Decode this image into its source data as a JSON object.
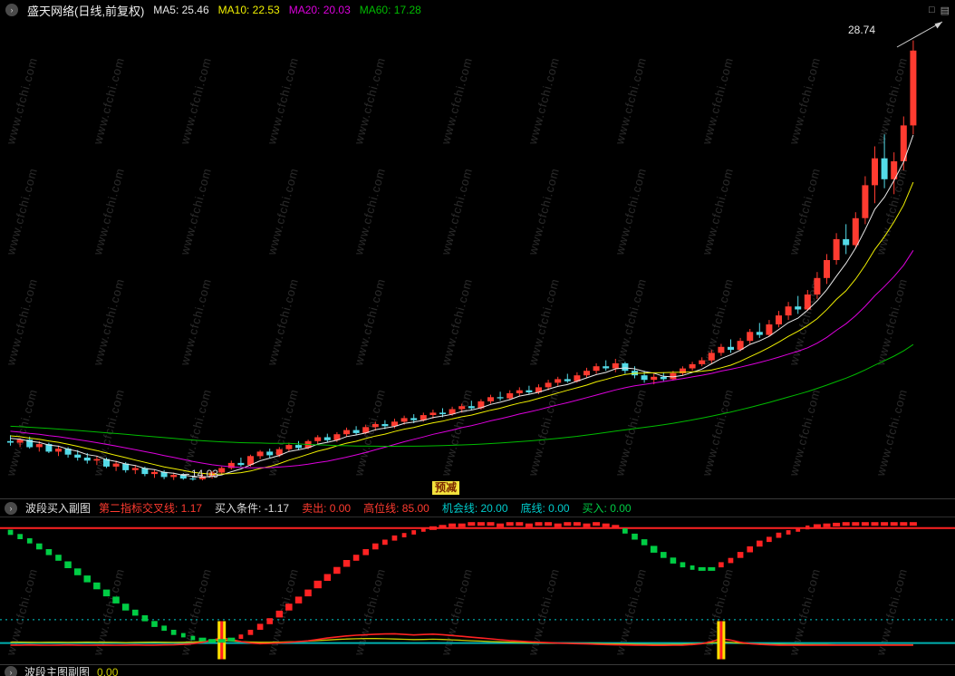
{
  "topbar": {
    "title": "盛天网络(日线,前复权)",
    "ma": [
      {
        "period": 5,
        "label": "MA5: 25.46",
        "color": "#e8e8e8"
      },
      {
        "period": 10,
        "label": "MA10: 22.53",
        "color": "#f0f000"
      },
      {
        "period": 20,
        "label": "MA20: 20.03",
        "color": "#dd00dd"
      },
      {
        "period": 60,
        "label": "MA60: 17.28",
        "color": "#00bb00"
      }
    ],
    "window_icons": [
      "□",
      "▤"
    ]
  },
  "watermark": {
    "text": "www.cfchi.com"
  },
  "main": {
    "high_label": "28.74",
    "low_label": "14.03",
    "event_badge": "预减"
  },
  "subpanel": {
    "name": "波段买入副图",
    "indicators": [
      {
        "label": "第二指标交叉线: 1.17",
        "color": "#ff3b30"
      },
      {
        "label": "买入条件: -1.17",
        "color": "#dddddd"
      },
      {
        "label": "卖出: 0.00",
        "color": "#ff3b30"
      },
      {
        "label": "高位线: 85.00",
        "color": "#ff3b30"
      },
      {
        "label": "机会线: 20.00",
        "color": "#00cccc"
      },
      {
        "label": "底线: 0.00",
        "color": "#00cccc"
      },
      {
        "label": "买入: 0.00",
        "color": "#00cc44"
      }
    ]
  },
  "bottom_panel": {
    "name": "波段主图副图",
    "value": "0.00"
  },
  "colors": {
    "up": "#ff3b30",
    "down": "#54dbe8",
    "ma5": "#e8e8e8",
    "ma10": "#f0f000",
    "ma20": "#dd00dd",
    "ma60": "#00bb00",
    "wave_up": "#ff2222",
    "wave_down": "#00cc44",
    "high_line": "#ff2222",
    "opp_line": "#00cccc",
    "base_line": "#00b0b0",
    "signal_bar": "#ffdf00",
    "signal_bar_core": "#ff2020",
    "red_curve": "#ff2222",
    "yellow_curve": "#cccc00",
    "annotation": "#d8d8d8"
  },
  "chart_data": {
    "type": "candlestick",
    "title": "盛天网络 日线 前复权",
    "price_high_annotation": 28.74,
    "price_low_annotation": 14.03,
    "ma_current": {
      "MA5": 25.46,
      "MA10": 22.53,
      "MA20": 20.03,
      "MA60": 17.28
    },
    "ma_periods": [
      5,
      10,
      20,
      60
    ],
    "candles": [
      [
        15.35,
        15.55,
        15.2,
        15.3
      ],
      [
        15.3,
        15.45,
        15.15,
        15.4
      ],
      [
        15.4,
        15.5,
        15.1,
        15.15
      ],
      [
        15.15,
        15.35,
        15.0,
        15.25
      ],
      [
        15.25,
        15.3,
        14.95,
        15.0
      ],
      [
        15.0,
        15.2,
        14.85,
        15.1
      ],
      [
        15.1,
        15.15,
        14.8,
        14.9
      ],
      [
        14.9,
        15.05,
        14.7,
        14.8
      ],
      [
        14.8,
        14.95,
        14.6,
        14.7
      ],
      [
        14.7,
        14.85,
        14.55,
        14.75
      ],
      [
        14.75,
        14.8,
        14.45,
        14.5
      ],
      [
        14.5,
        14.7,
        14.35,
        14.6
      ],
      [
        14.6,
        14.65,
        14.3,
        14.38
      ],
      [
        14.38,
        14.55,
        14.25,
        14.45
      ],
      [
        14.45,
        14.5,
        14.18,
        14.25
      ],
      [
        14.25,
        14.4,
        14.12,
        14.32
      ],
      [
        14.32,
        14.38,
        14.08,
        14.15
      ],
      [
        14.15,
        14.3,
        14.05,
        14.22
      ],
      [
        14.22,
        14.28,
        14.06,
        14.1
      ],
      [
        14.1,
        14.2,
        14.03,
        14.08
      ],
      [
        14.08,
        14.25,
        14.04,
        14.18
      ],
      [
        14.18,
        14.35,
        14.1,
        14.3
      ],
      [
        14.3,
        14.5,
        14.22,
        14.45
      ],
      [
        14.45,
        14.7,
        14.4,
        14.62
      ],
      [
        14.62,
        14.8,
        14.5,
        14.55
      ],
      [
        14.55,
        14.9,
        14.5,
        14.85
      ],
      [
        14.85,
        15.05,
        14.75,
        15.0
      ],
      [
        15.0,
        15.1,
        14.8,
        14.88
      ],
      [
        14.88,
        15.15,
        14.82,
        15.08
      ],
      [
        15.08,
        15.3,
        15.0,
        15.22
      ],
      [
        15.22,
        15.35,
        15.05,
        15.12
      ],
      [
        15.12,
        15.4,
        15.08,
        15.35
      ],
      [
        15.35,
        15.55,
        15.25,
        15.48
      ],
      [
        15.48,
        15.6,
        15.3,
        15.38
      ],
      [
        15.38,
        15.65,
        15.32,
        15.58
      ],
      [
        15.58,
        15.8,
        15.5,
        15.72
      ],
      [
        15.72,
        15.85,
        15.55,
        15.62
      ],
      [
        15.62,
        15.9,
        15.58,
        15.82
      ],
      [
        15.82,
        16.0,
        15.7,
        15.92
      ],
      [
        15.92,
        16.05,
        15.75,
        15.85
      ],
      [
        15.85,
        16.1,
        15.78,
        16.0
      ],
      [
        16.0,
        16.2,
        15.9,
        16.12
      ],
      [
        16.12,
        16.25,
        15.95,
        16.05
      ],
      [
        16.05,
        16.3,
        16.0,
        16.22
      ],
      [
        16.22,
        16.4,
        16.1,
        16.3
      ],
      [
        16.3,
        16.45,
        16.15,
        16.25
      ],
      [
        16.25,
        16.5,
        16.2,
        16.42
      ],
      [
        16.42,
        16.6,
        16.3,
        16.52
      ],
      [
        16.52,
        16.7,
        16.4,
        16.45
      ],
      [
        16.45,
        16.75,
        16.4,
        16.68
      ],
      [
        16.68,
        16.9,
        16.6,
        16.82
      ],
      [
        16.82,
        17.0,
        16.7,
        16.78
      ],
      [
        16.78,
        17.05,
        16.72,
        16.95
      ],
      [
        16.95,
        17.15,
        16.85,
        17.05
      ],
      [
        17.05,
        17.2,
        16.9,
        16.98
      ],
      [
        16.98,
        17.25,
        16.92,
        17.15
      ],
      [
        17.15,
        17.4,
        17.05,
        17.3
      ],
      [
        17.3,
        17.5,
        17.2,
        17.42
      ],
      [
        17.42,
        17.6,
        17.3,
        17.35
      ],
      [
        17.35,
        17.65,
        17.3,
        17.55
      ],
      [
        17.55,
        17.8,
        17.45,
        17.7
      ],
      [
        17.7,
        17.95,
        17.6,
        17.85
      ],
      [
        17.85,
        18.05,
        17.7,
        17.78
      ],
      [
        17.78,
        18.1,
        17.65,
        17.95
      ],
      [
        17.95,
        18.0,
        17.6,
        17.7
      ],
      [
        17.7,
        17.85,
        17.45,
        17.55
      ],
      [
        17.55,
        17.7,
        17.3,
        17.4
      ],
      [
        17.4,
        17.6,
        17.25,
        17.5
      ],
      [
        17.5,
        17.65,
        17.35,
        17.42
      ],
      [
        17.42,
        17.7,
        17.38,
        17.62
      ],
      [
        17.62,
        17.85,
        17.55,
        17.78
      ],
      [
        17.78,
        18.0,
        17.7,
        17.92
      ],
      [
        17.92,
        18.15,
        17.85,
        18.05
      ],
      [
        18.05,
        18.4,
        17.95,
        18.3
      ],
      [
        18.3,
        18.6,
        18.2,
        18.5
      ],
      [
        18.5,
        18.75,
        18.3,
        18.4
      ],
      [
        18.4,
        18.8,
        18.35,
        18.7
      ],
      [
        18.7,
        19.1,
        18.6,
        19.0
      ],
      [
        19.0,
        19.3,
        18.8,
        18.9
      ],
      [
        18.9,
        19.4,
        18.85,
        19.25
      ],
      [
        19.25,
        19.7,
        19.15,
        19.55
      ],
      [
        19.55,
        20.0,
        19.4,
        19.85
      ],
      [
        19.85,
        20.2,
        19.6,
        19.75
      ],
      [
        19.75,
        20.4,
        19.7,
        20.25
      ],
      [
        20.25,
        21.0,
        20.1,
        20.8
      ],
      [
        20.8,
        21.6,
        20.6,
        21.4
      ],
      [
        21.4,
        22.3,
        21.25,
        22.1
      ],
      [
        22.1,
        22.6,
        21.6,
        21.9
      ],
      [
        21.9,
        23.0,
        21.8,
        22.8
      ],
      [
        22.8,
        24.2,
        22.6,
        23.9
      ],
      [
        23.9,
        25.2,
        23.3,
        24.8
      ],
      [
        24.8,
        25.6,
        23.8,
        24.1
      ],
      [
        24.1,
        25.0,
        23.6,
        24.7
      ],
      [
        24.7,
        26.2,
        24.4,
        25.9
      ],
      [
        25.9,
        28.74,
        25.6,
        28.4
      ]
    ],
    "sub_indicator": {
      "name": "波段买入副图",
      "high_line": 85,
      "opportunity_line": 20,
      "base_line": 0,
      "teal_level": 3.5,
      "signal_bar_indices": [
        22,
        74
      ],
      "wave": [
        82,
        79,
        76,
        72,
        68,
        64,
        59,
        54,
        49,
        44,
        39,
        34,
        29,
        25,
        21,
        17,
        14,
        11,
        9,
        7,
        6,
        5,
        5,
        6,
        8,
        11,
        15,
        19,
        24,
        29,
        34,
        39,
        45,
        50,
        55,
        60,
        64,
        68,
        72,
        75,
        78,
        80,
        82,
        84,
        85,
        86,
        87,
        87,
        88,
        88,
        88,
        87,
        88,
        88,
        87,
        88,
        88,
        87,
        88,
        88,
        87,
        88,
        87,
        86,
        83,
        79,
        75,
        70,
        66,
        62,
        59,
        57,
        56,
        56,
        59,
        62,
        66,
        70,
        74,
        77,
        80,
        82,
        84,
        85.5,
        86.5,
        87,
        87.5,
        88,
        88,
        88,
        88,
        88,
        88,
        88,
        88
      ],
      "red_curve": [
        2,
        2,
        2.1,
        2,
        1.9,
        2,
        2.1,
        2,
        1.9,
        2,
        2,
        1.9,
        2,
        2.1,
        2,
        2,
        2.1,
        2.2,
        2.5,
        3,
        4,
        5.5,
        7,
        6,
        4.5,
        3.5,
        3,
        3.2,
        3.6,
        4,
        4.5,
        5,
        6,
        7,
        7.8,
        8.5,
        9,
        9.4,
        9.7,
        9.9,
        10,
        9.6,
        9.2,
        9.5,
        9.8,
        9.4,
        8.8,
        8.2,
        7.6,
        7,
        6.4,
        5.8,
        5.2,
        4.8,
        4.4,
        4,
        3.7,
        3.4,
        3.2,
        3,
        2.8,
        2.6,
        2.4,
        2.2,
        2.1,
        2,
        1.9,
        1.8,
        1.8,
        1.9,
        2,
        2.4,
        3,
        4.5,
        6.5,
        5.5,
        4,
        3,
        2.5,
        2.2,
        2,
        2,
        1.9,
        1.9,
        2,
        2,
        2,
        2,
        2,
        2,
        2,
        2,
        2,
        2,
        2
      ],
      "yellow_curve": [
        4,
        4.1,
        4,
        3.9,
        4,
        4,
        3.9,
        4,
        4.1,
        4,
        4,
        3.9,
        3.8,
        3.9,
        4,
        4.1,
        4,
        3.9,
        4,
        4.2,
        4.5,
        5,
        5.5,
        5,
        4.5,
        4.2,
        4,
        4,
        4.1,
        4.3,
        4.5,
        4.8,
        5.2,
        5.6,
        6,
        6.3,
        6.5,
        6.6,
        6.6,
        6.5,
        6.3,
        6.1,
        5.9,
        6,
        6.2,
        6,
        5.7,
        5.4,
        5.1,
        4.8,
        4.5,
        4.3,
        4.1,
        3.9,
        3.8,
        3.6,
        3.5,
        3.4,
        3.3,
        3.2,
        3.1,
        3,
        2.9,
        2.8,
        2.7,
        2.6,
        2.5,
        2.4,
        2.4,
        2.5,
        2.6,
        2.8,
        3.1,
        3.6,
        4.2,
        3.9,
        3.4,
        3,
        2.8,
        2.6,
        2.5,
        2.4,
        2.4,
        2.3,
        2.3,
        2.3,
        2.2,
        2.2,
        2.2,
        2.2,
        2.2,
        2.2,
        2.2,
        2.2,
        2.2
      ]
    }
  }
}
